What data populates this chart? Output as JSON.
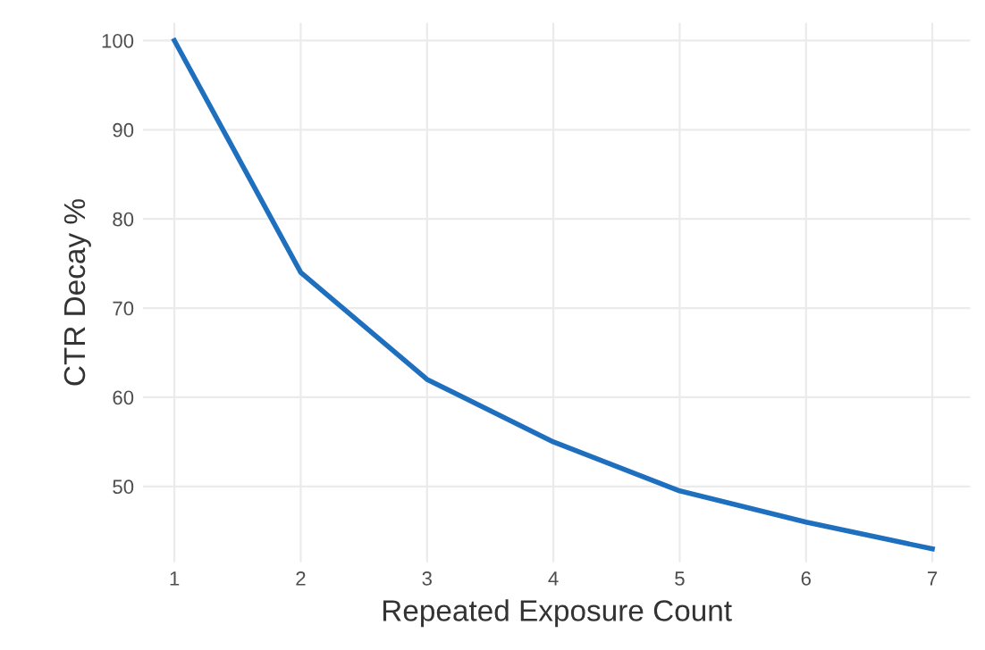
{
  "chart_data": {
    "type": "line",
    "xlabel": "Repeated Exposure Count",
    "ylabel": "CTR Decay %",
    "x": [
      1,
      2,
      3,
      4,
      5,
      6,
      7
    ],
    "series": [
      {
        "color": "#1f6fbf",
        "values": [
          100,
          74,
          62,
          55,
          49.5,
          46,
          43
        ]
      }
    ],
    "xlim": [
      0.75,
      7.3
    ],
    "ylim": [
      41.5,
      102
    ],
    "xticks": [
      1,
      2,
      3,
      4,
      5,
      6,
      7
    ],
    "yticks": [
      50,
      60,
      70,
      80,
      90,
      100
    ],
    "grid": true,
    "marker": "none",
    "line_style": "solid"
  }
}
